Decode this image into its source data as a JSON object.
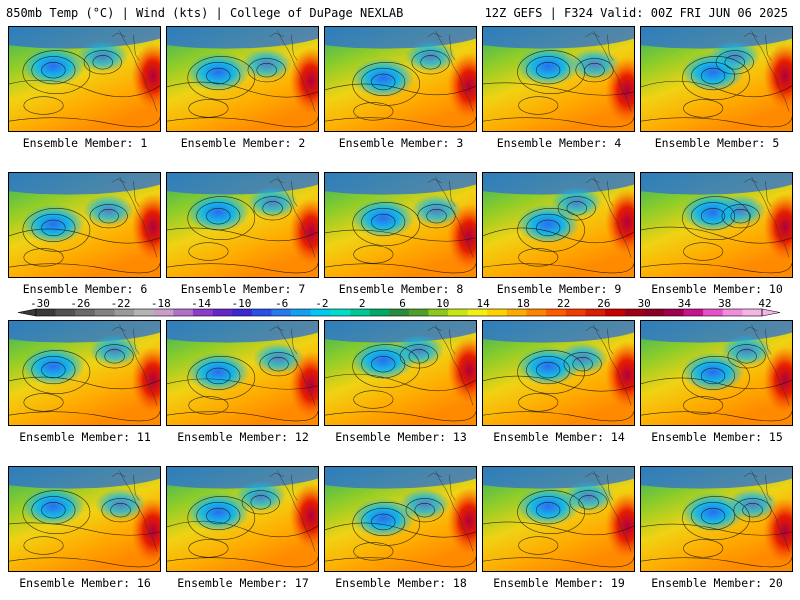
{
  "header": {
    "left": "850mb Temp (°C) | Wind (kts) | College of DuPage NEXLAB",
    "right": "12Z GEFS | F324 Valid: 00Z FRI JUN 06 2025"
  },
  "caption_prefix": "Ensemble Member: ",
  "members": [
    {
      "id": "1",
      "caption": "Ensemble Member: 1"
    },
    {
      "id": "2",
      "caption": "Ensemble Member: 2"
    },
    {
      "id": "3",
      "caption": "Ensemble Member: 3"
    },
    {
      "id": "4",
      "caption": "Ensemble Member: 4"
    },
    {
      "id": "5",
      "caption": "Ensemble Member: 5"
    },
    {
      "id": "6",
      "caption": "Ensemble Member: 6"
    },
    {
      "id": "7",
      "caption": "Ensemble Member: 7"
    },
    {
      "id": "8",
      "caption": "Ensemble Member: 8"
    },
    {
      "id": "9",
      "caption": "Ensemble Member: 9"
    },
    {
      "id": "10",
      "caption": "Ensemble Member: 10"
    },
    {
      "id": "11",
      "caption": "Ensemble Member: 11"
    },
    {
      "id": "12",
      "caption": "Ensemble Member: 12"
    },
    {
      "id": "13",
      "caption": "Ensemble Member: 13"
    },
    {
      "id": "14",
      "caption": "Ensemble Member: 14"
    },
    {
      "id": "15",
      "caption": "Ensemble Member: 15"
    },
    {
      "id": "16",
      "caption": "Ensemble Member: 16"
    },
    {
      "id": "17",
      "caption": "Ensemble Member: 17"
    },
    {
      "id": "18",
      "caption": "Ensemble Member: 18"
    },
    {
      "id": "19",
      "caption": "Ensemble Member: 19"
    },
    {
      "id": "20",
      "caption": "Ensemble Member: 20"
    }
  ],
  "colorbar": {
    "tick_labels": [
      "-30",
      "-26",
      "-22",
      "-18",
      "-14",
      "-10",
      "-6",
      "-2",
      "2",
      "6",
      "10",
      "14",
      "18",
      "22",
      "26",
      "30",
      "34",
      "38",
      "42"
    ],
    "colors": [
      "#3a3a3a",
      "#525252",
      "#6a6a6a",
      "#828282",
      "#9a9a9a",
      "#b4b4b4",
      "#c89ec8",
      "#b070c8",
      "#8c3cc8",
      "#6428c8",
      "#3c28d2",
      "#2850e6",
      "#2878f0",
      "#14a0f0",
      "#00c8f0",
      "#00dcc8",
      "#00c896",
      "#00aa64",
      "#288c3c",
      "#50a028",
      "#8cc81e",
      "#c8e614",
      "#f0f014",
      "#ffd200",
      "#ffaa00",
      "#ff8200",
      "#ff5a00",
      "#f03c00",
      "#dc1e00",
      "#c80000",
      "#a00014",
      "#8c0028",
      "#a00050",
      "#c8148c",
      "#e650c8",
      "#f08cdc",
      "#f5b4e6"
    ]
  }
}
